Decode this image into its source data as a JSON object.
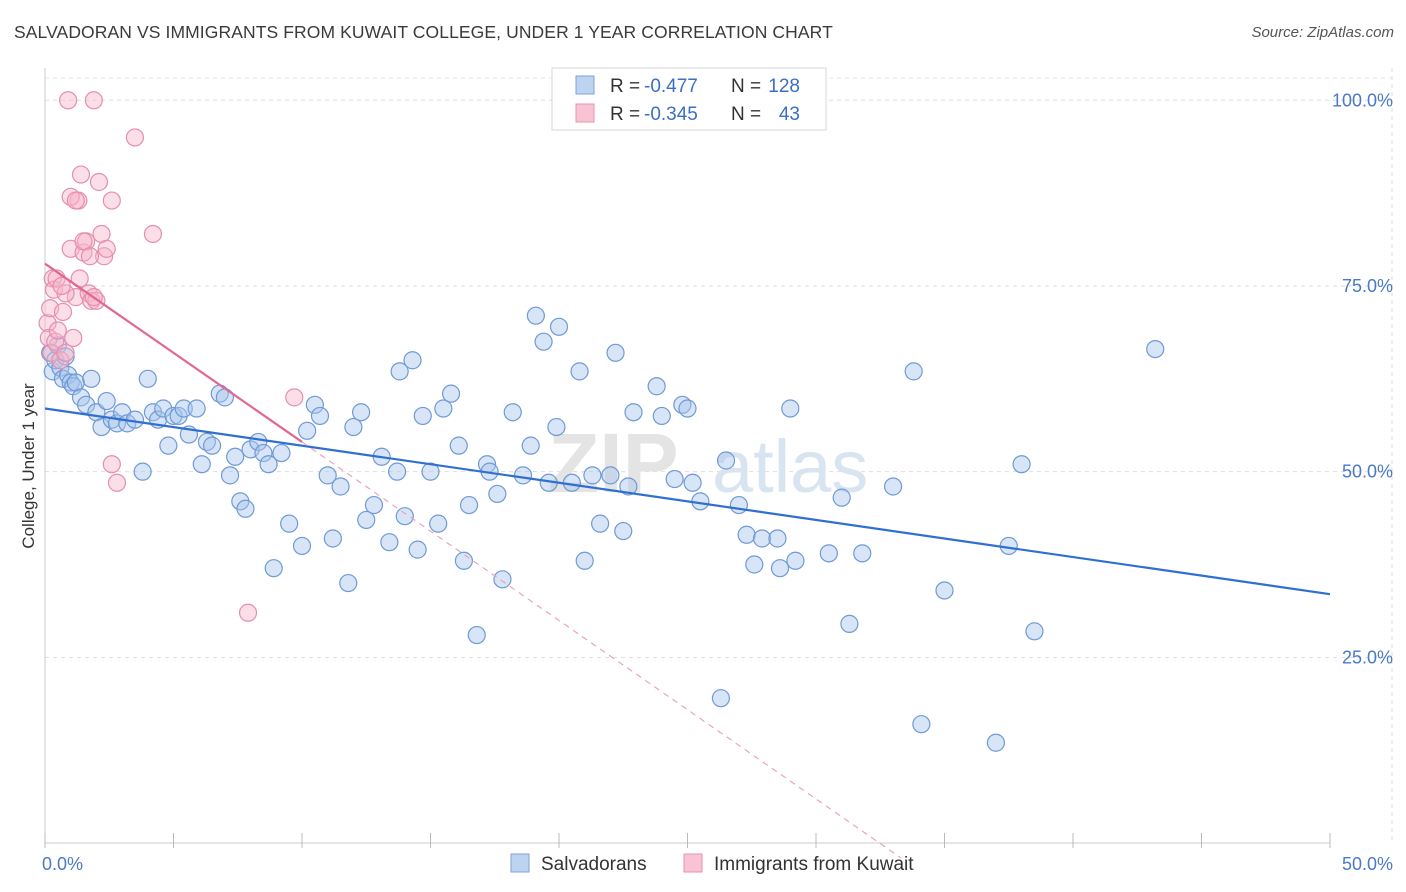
{
  "title": "SALVADORAN VS IMMIGRANTS FROM KUWAIT COLLEGE, UNDER 1 YEAR CORRELATION CHART",
  "source": "Source: ZipAtlas.com",
  "watermark": {
    "zip": "ZIP",
    "atlas": "atlas"
  },
  "colors": {
    "blue": "#4a79c6",
    "blue_fill": "#a9c6ec",
    "pink": "#e06891",
    "pink_fill": "#f6b5ca",
    "grid": "#dddddd"
  },
  "chart_data": {
    "type": "scatter",
    "title": "SALVADORAN VS IMMIGRANTS FROM KUWAIT COLLEGE, UNDER 1 YEAR CORRELATION CHART",
    "xlabel": "",
    "ylabel": "College, Under 1 year",
    "xlim": [
      0,
      50
    ],
    "ylim": [
      0,
      103
    ],
    "x_tick_labels": [
      "0.0%",
      "50.0%"
    ],
    "y_ticks": [
      25,
      50,
      75,
      100
    ],
    "y_tick_labels": [
      "25.0%",
      "50.0%",
      "75.0%",
      "100.0%"
    ],
    "grid": true,
    "legend_placement": "top-center",
    "legend": [
      {
        "r_label": "R =",
        "r_value": "-0.477",
        "n_label": "N =",
        "n_value": "128"
      },
      {
        "r_label": "R =",
        "r_value": "-0.345",
        "n_label": "N =",
        "n_value": "43"
      }
    ],
    "series": [
      {
        "name": "Salvadorans",
        "color": "#4a79c6",
        "trend": {
          "x": [
            0,
            50
          ],
          "y": [
            58.5,
            33.5
          ]
        },
        "points": [
          [
            0.2,
            66
          ],
          [
            0.3,
            63.5
          ],
          [
            0.4,
            65
          ],
          [
            0.5,
            67
          ],
          [
            0.6,
            64
          ],
          [
            0.7,
            62.5
          ],
          [
            0.8,
            65.5
          ],
          [
            0.9,
            63
          ],
          [
            1.0,
            62
          ],
          [
            1.1,
            61.5
          ],
          [
            1.2,
            62
          ],
          [
            1.4,
            60
          ],
          [
            1.6,
            59
          ],
          [
            1.8,
            62.5
          ],
          [
            2.0,
            58
          ],
          [
            2.2,
            56
          ],
          [
            2.4,
            59.5
          ],
          [
            2.6,
            57
          ],
          [
            2.8,
            56.5
          ],
          [
            3.0,
            58
          ],
          [
            3.2,
            56.5
          ],
          [
            3.5,
            57
          ],
          [
            3.8,
            50
          ],
          [
            4.0,
            62.5
          ],
          [
            4.2,
            58
          ],
          [
            4.4,
            57
          ],
          [
            4.6,
            58.5
          ],
          [
            4.8,
            53.5
          ],
          [
            5.0,
            57.5
          ],
          [
            5.2,
            57.5
          ],
          [
            5.4,
            58.5
          ],
          [
            5.6,
            55
          ],
          [
            5.9,
            58.5
          ],
          [
            6.1,
            51
          ],
          [
            6.3,
            54
          ],
          [
            6.5,
            53.5
          ],
          [
            6.8,
            60.5
          ],
          [
            7.0,
            60
          ],
          [
            7.2,
            49.5
          ],
          [
            7.4,
            52
          ],
          [
            7.6,
            46
          ],
          [
            7.8,
            45
          ],
          [
            8.0,
            53
          ],
          [
            8.3,
            54
          ],
          [
            8.5,
            52.5
          ],
          [
            8.7,
            51
          ],
          [
            8.9,
            37
          ],
          [
            9.2,
            52.5
          ],
          [
            9.5,
            43
          ],
          [
            10.0,
            40
          ],
          [
            10.2,
            55.5
          ],
          [
            10.5,
            59
          ],
          [
            10.7,
            57.5
          ],
          [
            11.0,
            49.5
          ],
          [
            11.2,
            41
          ],
          [
            11.5,
            48
          ],
          [
            11.8,
            35
          ],
          [
            12.0,
            56
          ],
          [
            12.3,
            58
          ],
          [
            12.5,
            43.5
          ],
          [
            12.8,
            45.5
          ],
          [
            13.1,
            52
          ],
          [
            13.4,
            40.5
          ],
          [
            13.7,
            50
          ],
          [
            13.8,
            63.5
          ],
          [
            14.0,
            44
          ],
          [
            14.3,
            65
          ],
          [
            14.5,
            39.5
          ],
          [
            14.7,
            57.5
          ],
          [
            15.0,
            50
          ],
          [
            15.3,
            43
          ],
          [
            15.5,
            58.5
          ],
          [
            15.8,
            60.5
          ],
          [
            16.1,
            53.5
          ],
          [
            16.3,
            38
          ],
          [
            16.5,
            45.5
          ],
          [
            16.8,
            28
          ],
          [
            17.2,
            51
          ],
          [
            17.3,
            50
          ],
          [
            17.6,
            47
          ],
          [
            17.8,
            35.5
          ],
          [
            18.2,
            58
          ],
          [
            18.6,
            49.5
          ],
          [
            18.9,
            53.5
          ],
          [
            19.1,
            71
          ],
          [
            19.4,
            67.5
          ],
          [
            19.6,
            48.5
          ],
          [
            19.9,
            56
          ],
          [
            20.0,
            69.5
          ],
          [
            20.5,
            48.5
          ],
          [
            20.8,
            63.5
          ],
          [
            21.0,
            38
          ],
          [
            21.3,
            49.5
          ],
          [
            21.6,
            43
          ],
          [
            22.0,
            49.5
          ],
          [
            22.2,
            66
          ],
          [
            22.5,
            42
          ],
          [
            22.7,
            48
          ],
          [
            22.9,
            58
          ],
          [
            23.8,
            61.5
          ],
          [
            24.0,
            57.5
          ],
          [
            24.5,
            49
          ],
          [
            24.8,
            59
          ],
          [
            25.0,
            58.5
          ],
          [
            25.2,
            48.5
          ],
          [
            25.5,
            46
          ],
          [
            26.3,
            19.5
          ],
          [
            26.5,
            51.5
          ],
          [
            27.0,
            45.5
          ],
          [
            27.3,
            41.5
          ],
          [
            27.6,
            37.5
          ],
          [
            27.9,
            41
          ],
          [
            28.5,
            41
          ],
          [
            28.6,
            37
          ],
          [
            29.0,
            58.5
          ],
          [
            29.2,
            38
          ],
          [
            30.5,
            39
          ],
          [
            31.0,
            46.5
          ],
          [
            31.3,
            29.5
          ],
          [
            31.8,
            39
          ],
          [
            33.0,
            48
          ],
          [
            33.8,
            63.5
          ],
          [
            34.1,
            16
          ],
          [
            35.0,
            34
          ],
          [
            37.0,
            13.5
          ],
          [
            37.5,
            40
          ],
          [
            38.0,
            51
          ],
          [
            38.5,
            28.5
          ],
          [
            43.2,
            66.5
          ]
        ]
      },
      {
        "name": "Immigrants from Kuwait",
        "color": "#e06891",
        "trend": {
          "x": [
            0,
            10
          ],
          "y": [
            78,
            54
          ]
        },
        "trend_dashed": {
          "x": [
            10,
            33.3
          ],
          "y": [
            54,
            -2
          ]
        },
        "points": [
          [
            0.1,
            70
          ],
          [
            0.15,
            68
          ],
          [
            0.2,
            72
          ],
          [
            0.25,
            66
          ],
          [
            0.3,
            76
          ],
          [
            0.35,
            74.5
          ],
          [
            0.4,
            67.5
          ],
          [
            0.45,
            76
          ],
          [
            0.5,
            69
          ],
          [
            0.6,
            65
          ],
          [
            0.7,
            71.5
          ],
          [
            0.8,
            66
          ],
          [
            0.9,
            100
          ],
          [
            1.0,
            80
          ],
          [
            1.1,
            68
          ],
          [
            1.2,
            73.5
          ],
          [
            1.3,
            86.5
          ],
          [
            1.4,
            90
          ],
          [
            1.5,
            79.5
          ],
          [
            1.6,
            81
          ],
          [
            1.7,
            74
          ],
          [
            1.8,
            73
          ],
          [
            1.9,
            100
          ],
          [
            2.0,
            73
          ],
          [
            2.1,
            89
          ],
          [
            2.2,
            82
          ],
          [
            2.3,
            79
          ],
          [
            2.4,
            80
          ],
          [
            2.6,
            51
          ],
          [
            2.8,
            48.5
          ],
          [
            1.0,
            87
          ],
          [
            1.2,
            86.5
          ],
          [
            1.35,
            76
          ],
          [
            1.5,
            81
          ],
          [
            1.75,
            79
          ],
          [
            0.8,
            74
          ],
          [
            0.65,
            75
          ],
          [
            3.5,
            95
          ],
          [
            4.2,
            82
          ],
          [
            7.9,
            31
          ],
          [
            9.7,
            60
          ],
          [
            2.6,
            86.5
          ],
          [
            1.9,
            73.5
          ]
        ]
      }
    ]
  },
  "bottom_legend": [
    {
      "label": "Salvadorans"
    },
    {
      "label": "Immigrants from Kuwait"
    }
  ]
}
